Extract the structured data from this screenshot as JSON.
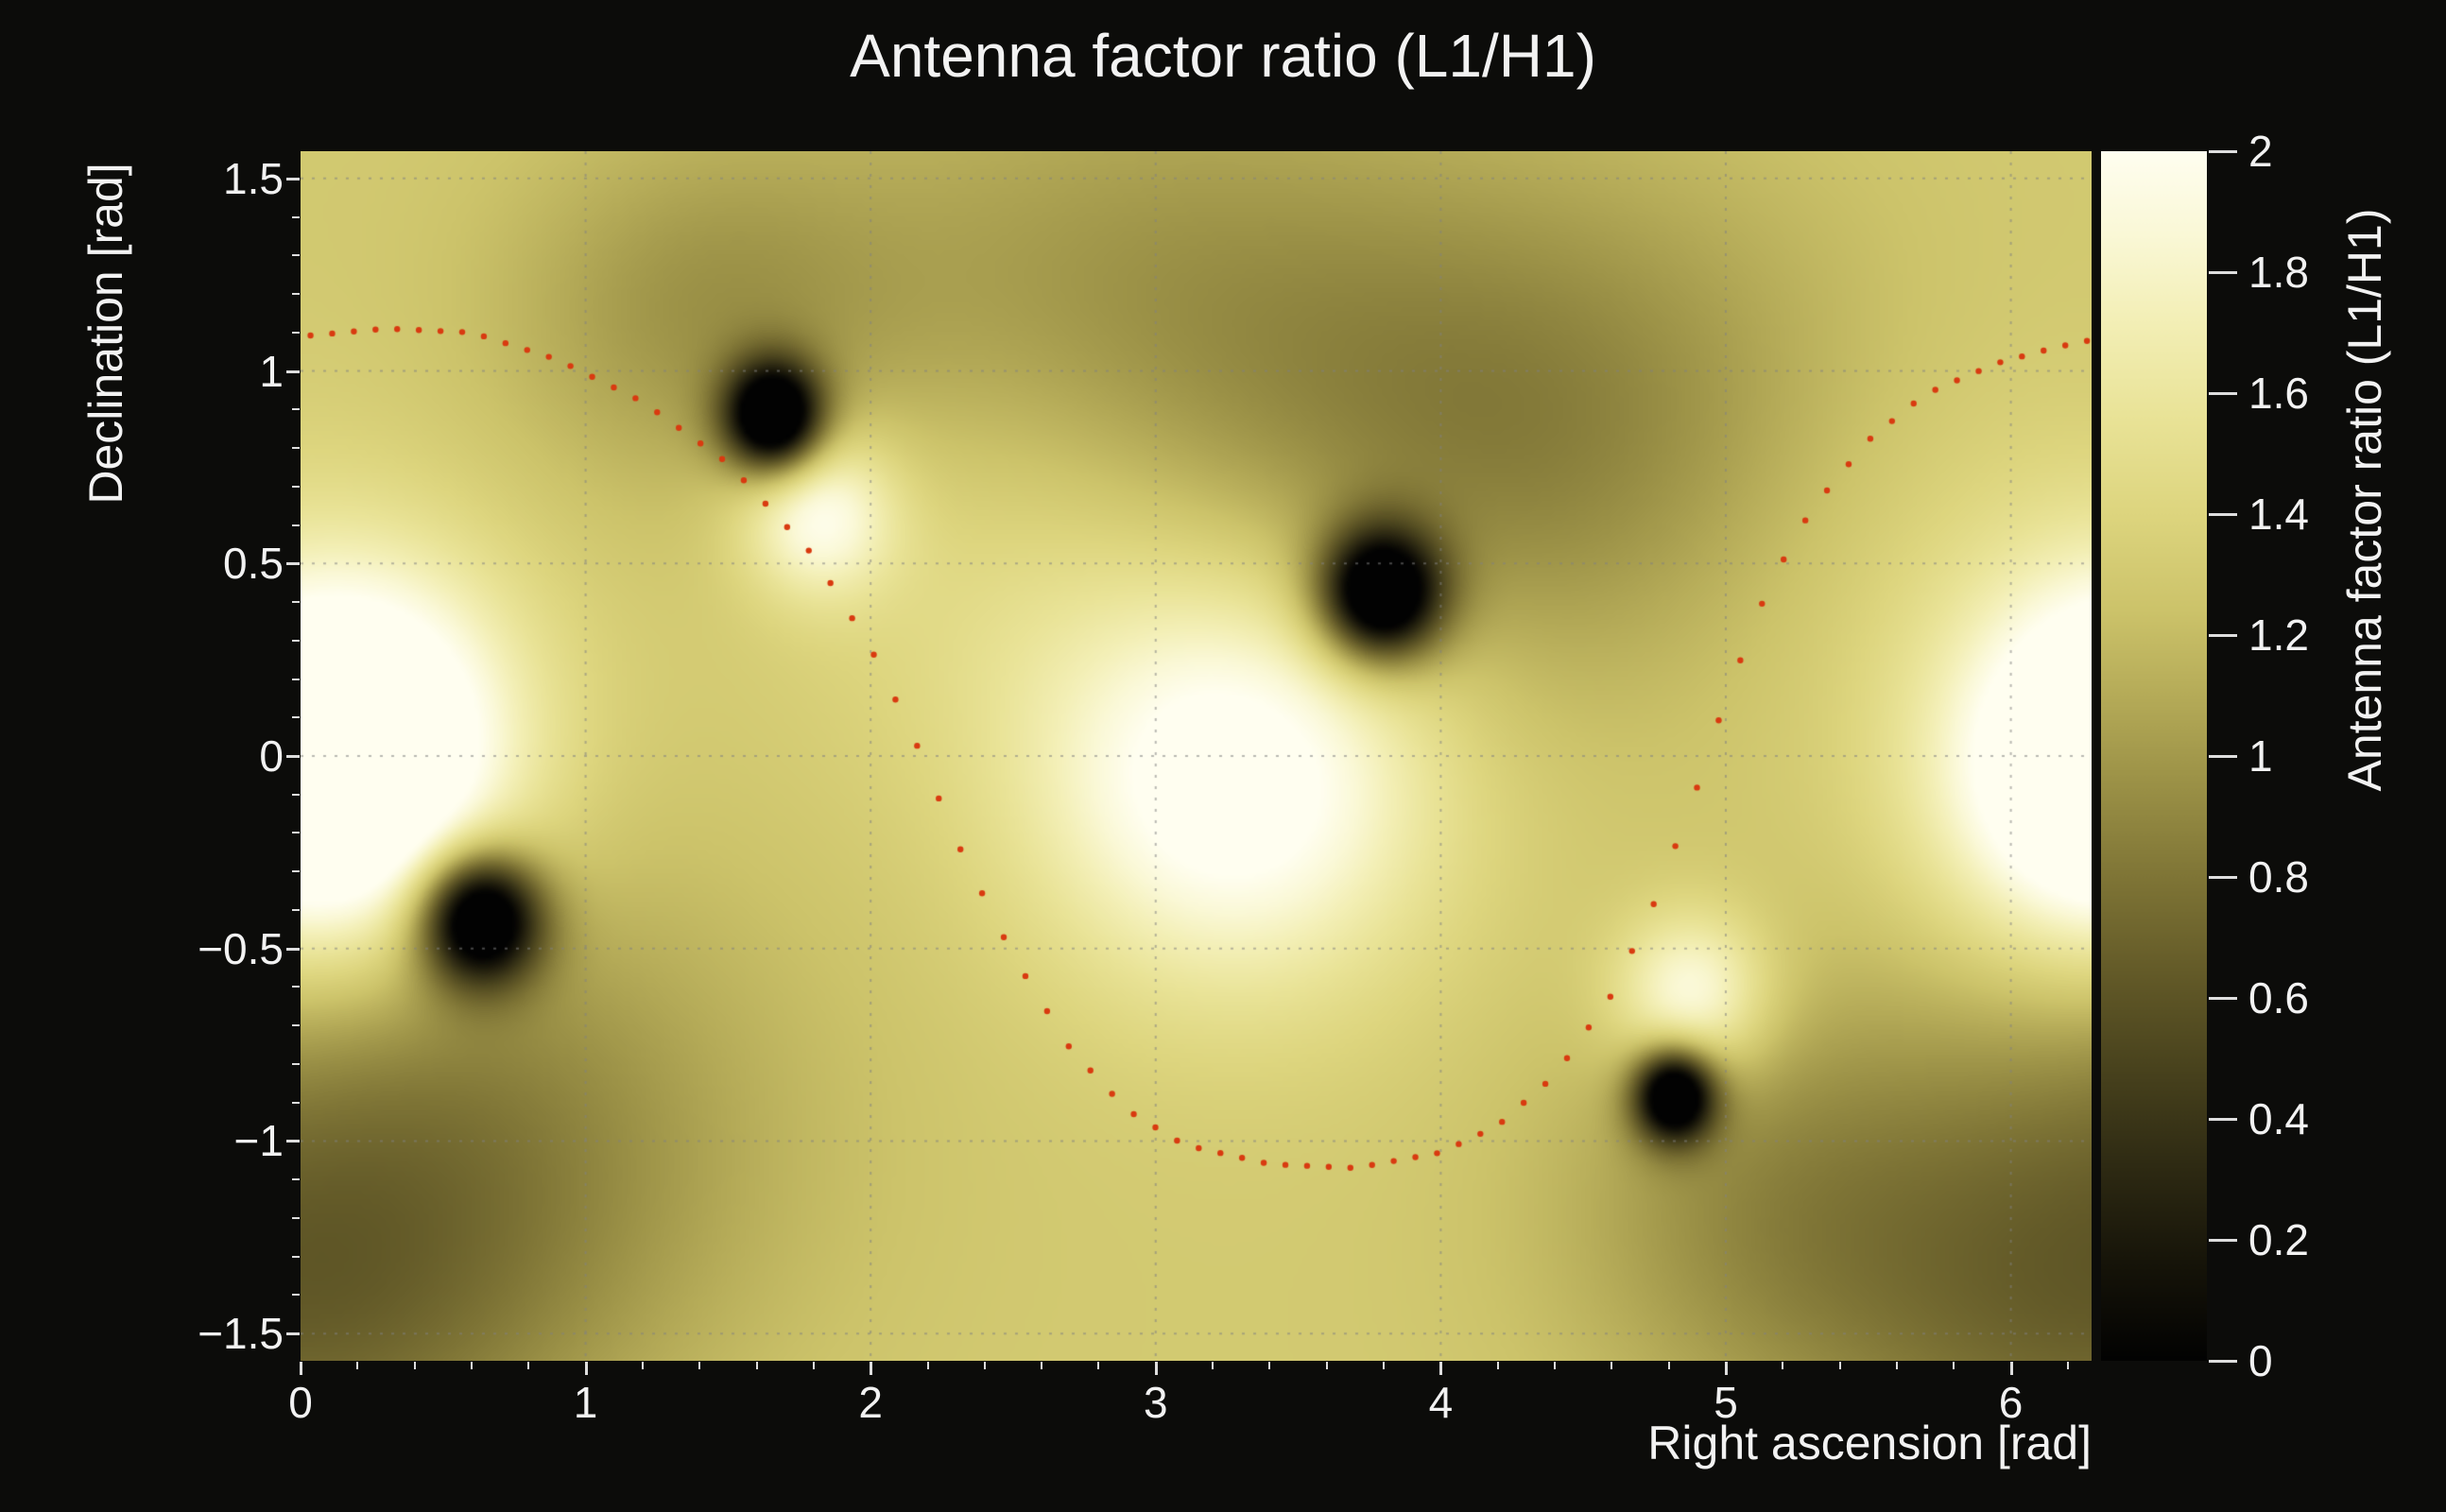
{
  "page": {
    "background": "#0c0c0a",
    "text_color": "#f2f2f2"
  },
  "chart_data": {
    "type": "heatmap",
    "title": "Antenna factor ratio (L1/H1)",
    "xlabel": "Right ascension [rad]",
    "ylabel": "Declination [rad]",
    "colorbar_label": "Antenna factor ratio (L1/H1)",
    "x_range": [
      0,
      6.2832
    ],
    "y_range": [
      -1.5708,
      1.5708
    ],
    "value_range": [
      0,
      2
    ],
    "x_ticks": [
      0,
      1,
      2,
      3,
      4,
      5,
      6
    ],
    "y_ticks": [
      -1.5,
      -1,
      -0.5,
      0,
      0.5,
      1,
      1.5
    ],
    "colorbar_ticks": [
      0,
      0.2,
      0.4,
      0.6,
      0.8,
      1,
      1.2,
      1.4,
      1.6,
      1.8,
      2
    ],
    "grid": {
      "show": true,
      "color": "#828282",
      "style": "dotted"
    },
    "palette": [
      {
        "t": 0.0,
        "color": "#020202"
      },
      {
        "t": 0.08,
        "color": "#161409"
      },
      {
        "t": 0.16,
        "color": "#2e2a13"
      },
      {
        "t": 0.24,
        "color": "#48421d"
      },
      {
        "t": 0.32,
        "color": "#635a28"
      },
      {
        "t": 0.4,
        "color": "#7f7536"
      },
      {
        "t": 0.48,
        "color": "#9c9247"
      },
      {
        "t": 0.55,
        "color": "#b5ab58"
      },
      {
        "t": 0.62,
        "color": "#ccc36a"
      },
      {
        "t": 0.7,
        "color": "#ddd57e"
      },
      {
        "t": 0.78,
        "color": "#e9e397"
      },
      {
        "t": 0.86,
        "color": "#f3efb6"
      },
      {
        "t": 0.93,
        "color": "#faf8d6"
      },
      {
        "t": 1.0,
        "color": "#fffef0"
      }
    ],
    "base_value": 1.3,
    "bright_features": [
      {
        "ra": 0.22,
        "dec": 0.05,
        "amp": 0.85,
        "sx": 0.4,
        "sy": 0.32
      },
      {
        "ra": 3.28,
        "dec": -0.06,
        "amp": 0.9,
        "sx": 0.48,
        "sy": 0.36
      },
      {
        "ra": 1.82,
        "dec": 0.63,
        "amp": 0.7,
        "sx": 0.19,
        "sy": 0.15
      },
      {
        "ra": 4.88,
        "dec": -0.62,
        "amp": 0.7,
        "sx": 0.19,
        "sy": 0.15
      },
      {
        "ra": 6.3,
        "dec": -0.1,
        "amp": 0.85,
        "sx": 0.4,
        "sy": 0.32
      },
      {
        "ra": 2.45,
        "dec": 0.5,
        "amp": 0.18,
        "sx": 0.55,
        "sy": 0.38
      },
      {
        "ra": 5.65,
        "dec": 0.55,
        "amp": 0.15,
        "sx": 0.65,
        "sy": 0.42
      }
    ],
    "dark_features": [
      {
        "ra": 1.66,
        "dec": 0.88,
        "amp": 1.75,
        "sx": 0.12,
        "sy": 0.1
      },
      {
        "ra": 1.4,
        "dec": 1.15,
        "amp": 0.3,
        "sx": 0.5,
        "sy": 0.33
      },
      {
        "ra": 3.79,
        "dec": 0.42,
        "amp": 1.75,
        "sx": 0.15,
        "sy": 0.12
      },
      {
        "ra": 4.35,
        "dec": 0.85,
        "amp": 0.45,
        "sx": 0.85,
        "sy": 0.48
      },
      {
        "ra": 2.85,
        "dec": 1.2,
        "amp": 0.28,
        "sx": 0.8,
        "sy": 0.45
      },
      {
        "ra": 0.63,
        "dec": -0.42,
        "amp": 1.75,
        "sx": 0.15,
        "sy": 0.12
      },
      {
        "ra": 0.5,
        "dec": -1.0,
        "amp": 0.45,
        "sx": 0.8,
        "sy": 0.5
      },
      {
        "ra": 0.1,
        "dec": -1.5,
        "amp": 0.22,
        "sx": 0.6,
        "sy": 0.4
      },
      {
        "ra": 4.82,
        "dec": -0.88,
        "amp": 1.65,
        "sx": 0.1,
        "sy": 0.085
      },
      {
        "ra": 5.15,
        "dec": -1.15,
        "amp": 0.3,
        "sx": 0.55,
        "sy": 0.38
      },
      {
        "ra": 5.9,
        "dec": -1.5,
        "amp": 0.2,
        "sx": 0.7,
        "sy": 0.4
      }
    ],
    "minima": [
      {
        "ra": 1.66,
        "dec": 0.88,
        "value": 0
      },
      {
        "ra": 3.79,
        "dec": 0.42,
        "value": 0
      },
      {
        "ra": 0.63,
        "dec": -0.42,
        "value": 0
      },
      {
        "ra": 4.82,
        "dec": -0.88,
        "value": 0
      }
    ],
    "maxima": [
      {
        "ra": 0.22,
        "dec": 0.05,
        "value": 2
      },
      {
        "ra": 1.82,
        "dec": 0.63,
        "value": 2
      },
      {
        "ra": 3.28,
        "dec": -0.06,
        "value": 2
      },
      {
        "ra": 4.88,
        "dec": -0.62,
        "value": 2
      },
      {
        "ra": 6.28,
        "dec": -0.1,
        "value": 2
      }
    ],
    "overlay_curve": {
      "color": "#d93a10",
      "marker": "dot",
      "dot_radius_px": 3.2,
      "ra_step": 0.076,
      "points": [
        [
          0.0,
          1.09
        ],
        [
          0.3,
          1.11
        ],
        [
          0.6,
          1.1
        ],
        [
          0.9,
          1.03
        ],
        [
          1.2,
          0.92
        ],
        [
          1.5,
          0.76
        ],
        [
          1.8,
          0.52
        ],
        [
          2.0,
          0.28
        ],
        [
          2.15,
          0.05
        ],
        [
          2.3,
          -0.22
        ],
        [
          2.5,
          -0.52
        ],
        [
          2.7,
          -0.76
        ],
        [
          2.9,
          -0.92
        ],
        [
          3.1,
          -1.01
        ],
        [
          3.4,
          -1.06
        ],
        [
          3.7,
          -1.07
        ],
        [
          4.0,
          -1.03
        ],
        [
          4.2,
          -0.96
        ],
        [
          4.4,
          -0.83
        ],
        [
          4.6,
          -0.62
        ],
        [
          4.75,
          -0.38
        ],
        [
          4.9,
          -0.08
        ],
        [
          5.0,
          0.15
        ],
        [
          5.15,
          0.44
        ],
        [
          5.3,
          0.64
        ],
        [
          5.5,
          0.82
        ],
        [
          5.7,
          0.94
        ],
        [
          5.95,
          1.02
        ],
        [
          6.15,
          1.06
        ],
        [
          6.28,
          1.08
        ]
      ]
    }
  }
}
